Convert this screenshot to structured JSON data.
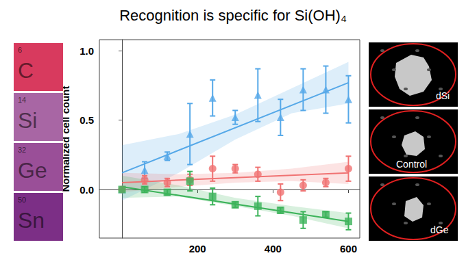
{
  "chart_data": {
    "type": "scatter",
    "title": "Recognition is specific for Si(OH)₄",
    "y_label": "Normalized cell count",
    "x": [
      0,
      60,
      120,
      180,
      240,
      300,
      360,
      420,
      480,
      540,
      600
    ],
    "xlim": [
      -60,
      630
    ],
    "xticks": [
      200,
      400,
      600
    ],
    "ylim": [
      -0.35,
      1.08
    ],
    "yticks": [
      {
        "value": 0,
        "label": "0.0"
      },
      {
        "value": 0.5,
        "label": "0.5"
      },
      {
        "value": 1,
        "label": "1.0"
      }
    ],
    "grid": false,
    "series": [
      {
        "color": "#55a8e8",
        "marker": "triangle",
        "values": [
          0,
          0.14,
          0.24,
          0.4,
          0.66,
          0.52,
          0.68,
          0.52,
          0.72,
          0.72,
          0.65
        ],
        "errors": [
          0,
          0.06,
          0.03,
          0.22,
          0.13,
          0.05,
          0.19,
          0.13,
          0.15,
          0.17,
          0.17
        ],
        "fit": {
          "x": [
            0,
            600
          ],
          "values": [
            0.12,
            0.77
          ]
        },
        "band": {
          "x": [
            0,
            150,
            300,
            450,
            600
          ],
          "lower": [
            -0.08,
            0.12,
            0.36,
            0.55,
            0.62
          ],
          "upper": [
            0.32,
            0.4,
            0.54,
            0.73,
            0.92
          ]
        }
      },
      {
        "color": "#f07272",
        "marker": "circle",
        "values": [
          0,
          0.07,
          0.05,
          0.07,
          0.15,
          0.15,
          0.11,
          -0.02,
          0.03,
          0.05,
          0.15
        ],
        "errors": [
          0,
          0.03,
          0.03,
          0.04,
          0.09,
          0.03,
          0.05,
          0.06,
          0.04,
          0.03,
          0.09
        ],
        "fit": {
          "x": [
            0,
            600
          ],
          "values": [
            0.05,
            0.12
          ]
        },
        "band": {
          "x": [
            0,
            150,
            300,
            450,
            600
          ],
          "lower": [
            -0.02,
            0.02,
            0.05,
            0.06,
            0.04
          ],
          "upper": [
            0.12,
            0.11,
            0.12,
            0.15,
            0.2
          ]
        }
      },
      {
        "color": "#3cb35a",
        "marker": "square",
        "values": [
          0,
          0.0,
          -0.02,
          0.06,
          -0.05,
          -0.11,
          -0.12,
          -0.15,
          -0.22,
          -0.18,
          -0.23
        ],
        "errors": [
          0,
          0.02,
          0.02,
          0.07,
          0.06,
          0.02,
          0.07,
          0.02,
          0.06,
          0.02,
          0.06
        ],
        "fit": {
          "x": [
            0,
            600
          ],
          "values": [
            0.02,
            -0.23
          ]
        },
        "band": {
          "x": [
            0,
            150,
            300,
            450,
            600
          ],
          "lower": [
            -0.06,
            -0.05,
            -0.12,
            -0.19,
            -0.28
          ],
          "upper": [
            0.1,
            0.03,
            -0.06,
            -0.12,
            -0.17
          ]
        }
      }
    ]
  },
  "elements": [
    {
      "number": 6,
      "symbol": "C",
      "color": "#d83a5e"
    },
    {
      "number": 14,
      "symbol": "Si",
      "color": "#a866a4"
    },
    {
      "number": 32,
      "symbol": "Ge",
      "color": "#9a4f98"
    },
    {
      "number": 50,
      "symbol": "Sn",
      "color": "#7c2f86"
    }
  ],
  "panels": [
    {
      "label": "dSi"
    },
    {
      "label": "Control"
    },
    {
      "label": "dGe"
    }
  ]
}
